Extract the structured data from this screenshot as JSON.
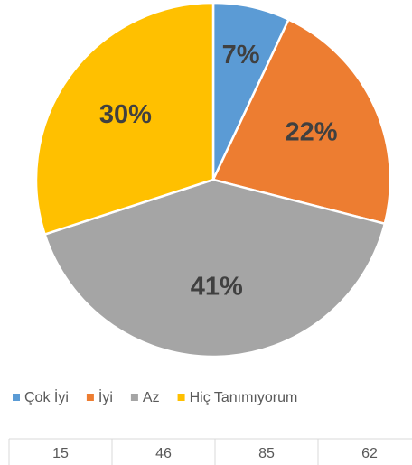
{
  "chart_data": {
    "type": "pie",
    "categories": [
      "Çok İyi",
      "İyi",
      "Az",
      "Hiç Tanımıyorum"
    ],
    "values": [
      7,
      22,
      41,
      30
    ],
    "value_labels": [
      "7%",
      "22%",
      "41%",
      "30%"
    ],
    "colors": [
      "#5b9bd5",
      "#ed7d31",
      "#a5a5a5",
      "#ffc000"
    ],
    "legend": "bottom"
  },
  "table": {
    "rows": [
      [
        15,
        46,
        85,
        62
      ]
    ]
  }
}
